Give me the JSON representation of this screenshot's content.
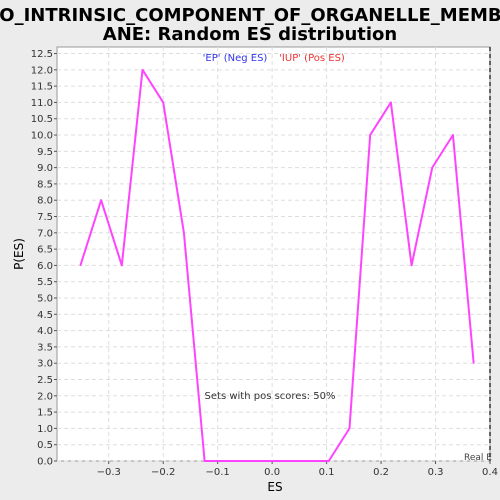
{
  "chart_data": {
    "type": "line",
    "title_line1": "GO_INTRINSIC_COMPONENT_OF_ORGANELLE_MEMBR",
    "title_line2": "ANE: Random ES distribution",
    "xlabel": "ES",
    "ylabel": "P(ES)",
    "xlim": [
      -0.395,
      0.4
    ],
    "ylim": [
      0,
      12.7
    ],
    "x_ticks": [
      -0.3,
      -0.2,
      -0.1,
      0.0,
      0.1,
      0.2,
      0.3,
      0.4
    ],
    "x_tick_labels": [
      "−0.3",
      "−0.2",
      "−0.1",
      "0.0",
      "0.1",
      "0.2",
      "0.3",
      "0.4"
    ],
    "y_ticks": [
      0.0,
      0.5,
      1.0,
      1.5,
      2.0,
      2.5,
      3.0,
      3.5,
      4.0,
      4.5,
      5.0,
      5.5,
      6.0,
      6.5,
      7.0,
      7.5,
      8.0,
      8.5,
      9.0,
      9.5,
      10.0,
      10.5,
      11.0,
      11.5,
      12.0,
      12.5
    ],
    "y_tick_labels": [
      "0.0",
      "0.5",
      "1.0",
      "1.5",
      "2.0",
      "2.5",
      "3.0",
      "3.5",
      "4.0",
      "4.5",
      "5.0",
      "5.5",
      "6.0",
      "6.5",
      "7.0",
      "7.5",
      "8.0",
      "8.5",
      "9.0",
      "9.5",
      "10.0",
      "10.5",
      "11.0",
      "11.5",
      "12.0",
      "12.5"
    ],
    "grid": true,
    "series": [
      {
        "color": "#ff44ff",
        "x": [
          -0.352,
          -0.314,
          -0.276,
          -0.238,
          -0.2,
          -0.162,
          -0.124,
          -0.086,
          -0.048,
          -0.01,
          0.028,
          0.066,
          0.104,
          0.142,
          0.18,
          0.218,
          0.256,
          0.294,
          0.332,
          0.37
        ],
        "y": [
          6.0,
          8.0,
          6.0,
          12.0,
          11.0,
          7.0,
          0.0,
          0.0,
          0.0,
          0.0,
          0.0,
          0.0,
          0.0,
          1.0,
          10.0,
          11.0,
          6.0,
          9.0,
          10.0,
          3.0
        ]
      }
    ],
    "legend": {
      "neg_label": "'EP' (Neg ES)",
      "neg_color": "#3333ee",
      "pos_label": "'IUP' (Pos ES)",
      "pos_color": "#ee3333"
    },
    "annotation": "Sets with pos scores: 50%",
    "real_es_label": "Real E",
    "real_es_x": 0.4
  }
}
